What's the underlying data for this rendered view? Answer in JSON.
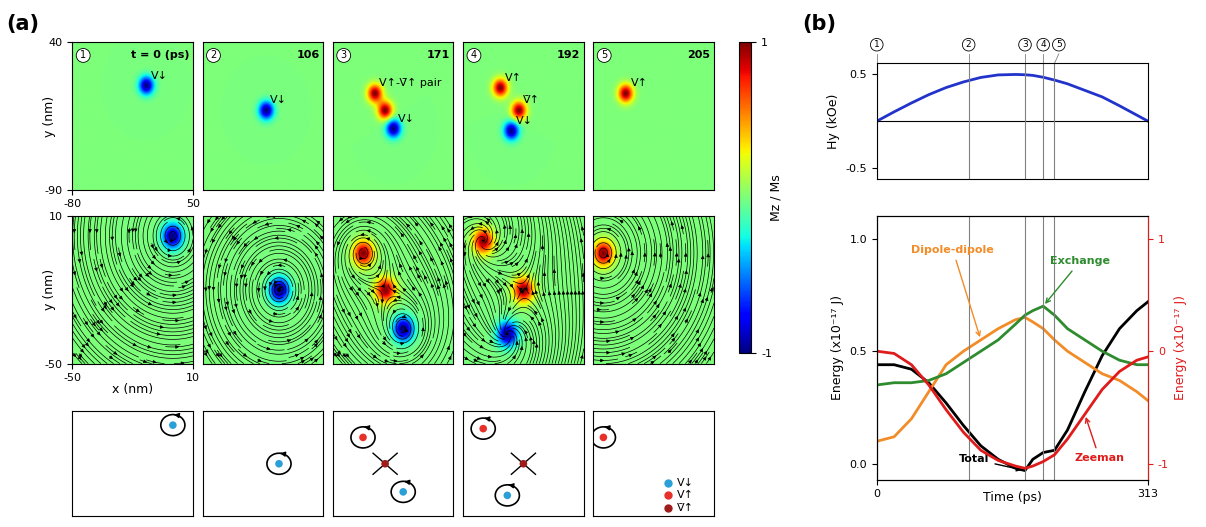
{
  "panel_a": {
    "label": "(a)",
    "colorbar": {
      "label": "Mz / Ms",
      "range": [
        -1,
        1
      ],
      "ticks": [
        -1,
        1
      ]
    },
    "surface_view": {
      "ylabel": "y (nm)",
      "xlim": [
        -80,
        50
      ],
      "ylim": [
        -90,
        40
      ],
      "xticks": [
        -80,
        50
      ],
      "yticks": [
        -90,
        40
      ]
    },
    "texture_view": {
      "xlabel": "x (nm)",
      "ylabel": "y (nm)",
      "xlim": [
        -50,
        10
      ],
      "ylim": [
        -50,
        10
      ],
      "xticks": [
        -50,
        10
      ],
      "yticks": [
        -50,
        10
      ]
    },
    "frames": [
      {
        "number": "1",
        "time_text": "t = 0 (ps)",
        "surface_labels": [
          "V↓"
        ],
        "vortices": [
          {
            "label": "V↓",
            "x": 0,
            "y": 2,
            "polarity": -1,
            "winding": 1
          }
        ]
      },
      {
        "number": "2",
        "time_text": "106",
        "surface_labels": [
          "V↓"
        ],
        "vortices": [
          {
            "label": "V↓",
            "x": -12,
            "y": -20,
            "polarity": -1,
            "winding": 1
          }
        ]
      },
      {
        "number": "3",
        "time_text": "171",
        "surface_labels": [
          "V↑-V̄↑ pair",
          "V↓"
        ],
        "vortices": [
          {
            "label": "V↑",
            "x": -35,
            "y": -5,
            "polarity": 1,
            "winding": 1
          },
          {
            "label": "V̄↑",
            "x": -24,
            "y": -20,
            "polarity": 1,
            "winding": -1
          },
          {
            "label": "V↓",
            "x": -15,
            "y": -36,
            "polarity": -1,
            "winding": 1
          }
        ]
      },
      {
        "number": "4",
        "time_text": "192",
        "surface_labels": [
          "V↑",
          "V̄↑",
          "V↓"
        ],
        "vortices": [
          {
            "label": "V↑",
            "x": -40,
            "y": 0,
            "polarity": 1,
            "winding": 1
          },
          {
            "label": "V̄↑",
            "x": -20,
            "y": -20,
            "polarity": 1,
            "winding": -1
          },
          {
            "label": "V↓",
            "x": -28,
            "y": -38,
            "polarity": -1,
            "winding": 1
          }
        ]
      },
      {
        "number": "5",
        "time_text": "205",
        "surface_labels": [
          "V↑"
        ],
        "vortices": [
          {
            "label": "V↑",
            "x": -45,
            "y": -5,
            "polarity": 1,
            "winding": 1
          }
        ]
      }
    ],
    "legend": [
      {
        "label": "V↓",
        "color": "#2a9fd8"
      },
      {
        "label": "V↑",
        "color": "#e8302a"
      },
      {
        "label": "V̄↑",
        "color": "#9e1c1c"
      }
    ]
  },
  "panel_b_label": "(b)",
  "chart_data": [
    {
      "type": "line",
      "ylabel": "Hy (kOe)",
      "tick_labels": "y",
      "x": [
        0,
        20,
        40,
        60,
        80,
        100,
        120,
        140,
        160,
        171,
        180,
        192,
        205,
        220,
        240,
        260,
        280,
        300,
        313
      ],
      "xlim": [
        0,
        313
      ],
      "ylim": [
        -0.62,
        0.62
      ],
      "yticks": [
        -0.5,
        0.5
      ],
      "hline": 0,
      "markers": [
        {
          "label": "1",
          "value": 0
        },
        {
          "label": "2",
          "value": 106
        },
        {
          "label": "3",
          "value": 171
        },
        {
          "label": "4",
          "value": 192
        },
        {
          "label": "5",
          "value": 205
        }
      ],
      "series": [
        {
          "color": "#2233cc",
          "values": [
            0,
            0.1,
            0.195,
            0.284,
            0.36,
            0.42,
            0.468,
            0.495,
            0.5,
            0.497,
            0.49,
            0.47,
            0.44,
            0.4,
            0.33,
            0.26,
            0.165,
            0.065,
            0
          ]
        }
      ]
    },
    {
      "type": "line",
      "xlabel": "Time (ps)",
      "ylabel": "Energy (x10⁻¹⁷ J)",
      "y2label": "Energy (x10⁻¹⁷ J)",
      "x": [
        0,
        20,
        40,
        60,
        80,
        100,
        120,
        140,
        160,
        171,
        180,
        192,
        205,
        220,
        240,
        260,
        280,
        300,
        313
      ],
      "xlim": [
        0,
        313
      ],
      "xticks": [
        0,
        313
      ],
      "ylim": [
        -0.07,
        1.1
      ],
      "yticks": [
        {
          "value": 0,
          "label": "0.0"
        },
        {
          "value": 0.5,
          "label": "0.5"
        },
        {
          "value": 1,
          "label": "1.0"
        }
      ],
      "y2lim": [
        -1.14,
        1.2
      ],
      "y2ticks": [
        -1,
        0,
        1
      ],
      "series": [
        {
          "name": "Total",
          "color": "black",
          "values": [
            0.44,
            0.44,
            0.42,
            0.36,
            0.27,
            0.17,
            0.08,
            0.02,
            -0.02,
            -0.03,
            0.02,
            0.05,
            0.06,
            0.15,
            0.32,
            0.48,
            0.6,
            0.68,
            0.72
          ]
        },
        {
          "name": "Dipole-dipole",
          "color": "#f28c28",
          "values": [
            0.1,
            0.12,
            0.2,
            0.32,
            0.44,
            0.5,
            0.55,
            0.6,
            0.64,
            0.65,
            0.63,
            0.6,
            0.55,
            0.5,
            0.45,
            0.4,
            0.37,
            0.32,
            0.28
          ]
        },
        {
          "name": "Exchange",
          "color": "#2e8b2e",
          "values": [
            0.35,
            0.36,
            0.36,
            0.37,
            0.4,
            0.45,
            0.5,
            0.55,
            0.62,
            0.66,
            0.68,
            0.7,
            0.66,
            0.6,
            0.55,
            0.5,
            0.46,
            0.44,
            0.44
          ]
        },
        {
          "name": "Zeeman",
          "color": "#e01b1b",
          "axis": "y2",
          "values": [
            0,
            -0.02,
            -0.12,
            -0.3,
            -0.52,
            -0.72,
            -0.88,
            -0.97,
            -1.02,
            -1.04,
            -1.02,
            -0.98,
            -0.92,
            -0.78,
            -0.56,
            -0.34,
            -0.18,
            -0.08,
            -0.05
          ]
        }
      ]
    }
  ]
}
